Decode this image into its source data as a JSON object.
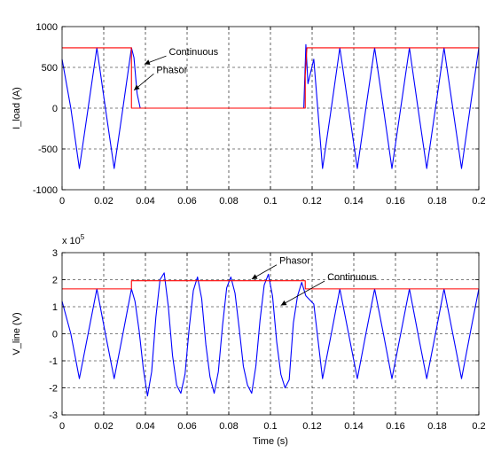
{
  "chart_data": [
    {
      "type": "line",
      "title": "",
      "xlabel": "",
      "ylabel": "I_load (A)",
      "xlim": [
        0,
        0.2
      ],
      "ylim": [
        -1000,
        1000
      ],
      "x_ticks": [
        0,
        0.02,
        0.04,
        0.06,
        0.08,
        0.1,
        0.12,
        0.14,
        0.16,
        0.18,
        0.2
      ],
      "x_tick_labels": [
        "0",
        "0.02",
        "0.04",
        "0.06",
        "0.08",
        "0.1",
        "0.12",
        "0.14",
        "0.16",
        "0.18",
        "0.2"
      ],
      "y_ticks": [
        -1000,
        -500,
        0,
        500,
        1000
      ],
      "y_tick_labels": [
        "-1000",
        "-500",
        "0",
        "500",
        "1000"
      ],
      "grid": true,
      "series": [
        {
          "name": "Continuous",
          "color": "#0000ff",
          "x": [
            0,
            0.0042,
            0.0083,
            0.0125,
            0.0167,
            0.0208,
            0.025,
            0.0292,
            0.0333,
            0.0345,
            0.036,
            0.0375,
            0.116,
            0.117,
            0.118,
            0.1208,
            0.125,
            0.1292,
            0.1333,
            0.1375,
            0.1417,
            0.1458,
            0.15,
            0.1542,
            0.1583,
            0.1625,
            0.1667,
            0.1708,
            0.175,
            0.1792,
            0.1833,
            0.1875,
            0.1917,
            0.1958,
            0.2
          ],
          "y": [
            600,
            0,
            -740,
            0,
            740,
            0,
            -740,
            0,
            740,
            620,
            180,
            0,
            0,
            780,
            300,
            600,
            -740,
            0,
            740,
            0,
            -740,
            0,
            740,
            0,
            -740,
            0,
            740,
            0,
            -740,
            0,
            740,
            0,
            -740,
            0,
            740
          ]
        },
        {
          "name": "Phasor",
          "color": "#ff0000",
          "x": [
            0,
            0.0333,
            0.0333,
            0.1167,
            0.1167,
            0.1175,
            0.2
          ],
          "y": [
            740,
            740,
            0,
            0,
            400,
            740,
            740
          ]
        }
      ],
      "annotations": [
        {
          "text": "Continuous",
          "at": [
            0.0395,
            540
          ],
          "anchor": [
            0.05,
            640
          ]
        },
        {
          "text": "Phasor",
          "at": [
            0.0345,
            220
          ],
          "anchor": [
            0.044,
            420
          ]
        }
      ]
    },
    {
      "type": "line",
      "title": "",
      "xlabel": "Time (s)",
      "ylabel": "V_line (V)",
      "y_multiplier": "x 10^5",
      "xlim": [
        0,
        0.2
      ],
      "ylim": [
        -3,
        3
      ],
      "x_ticks": [
        0,
        0.02,
        0.04,
        0.06,
        0.08,
        0.1,
        0.12,
        0.14,
        0.16,
        0.18,
        0.2
      ],
      "x_tick_labels": [
        "0",
        "0.02",
        "0.04",
        "0.06",
        "0.08",
        "0.1",
        "0.12",
        "0.14",
        "0.16",
        "0.18",
        "0.2"
      ],
      "y_ticks": [
        -3,
        -2,
        -1,
        0,
        1,
        2,
        3
      ],
      "y_tick_labels": [
        "-3",
        "-2",
        "-1",
        "0",
        "1",
        "2",
        "3"
      ],
      "grid": true,
      "series": [
        {
          "name": "Continuous",
          "color": "#0000ff",
          "x": [
            0,
            0.0042,
            0.0083,
            0.0125,
            0.0167,
            0.0208,
            0.025,
            0.0292,
            0.0333,
            0.035,
            0.037,
            0.039,
            0.041,
            0.043,
            0.045,
            0.047,
            0.049,
            0.051,
            0.053,
            0.055,
            0.057,
            0.059,
            0.061,
            0.063,
            0.065,
            0.067,
            0.069,
            0.071,
            0.073,
            0.075,
            0.077,
            0.079,
            0.081,
            0.083,
            0.085,
            0.087,
            0.089,
            0.091,
            0.093,
            0.095,
            0.097,
            0.099,
            0.101,
            0.103,
            0.105,
            0.107,
            0.109,
            0.111,
            0.113,
            0.115,
            0.117,
            0.1208,
            0.125,
            0.1292,
            0.1333,
            0.1375,
            0.1417,
            0.1458,
            0.15,
            0.1542,
            0.1583,
            0.1625,
            0.1667,
            0.1708,
            0.175,
            0.1792,
            0.1833,
            0.1875,
            0.1917,
            0.1958,
            0.2
          ],
          "y": [
            1.2,
            0,
            -1.66,
            0,
            1.66,
            0,
            -1.66,
            0,
            1.66,
            1.2,
            0.1,
            -1.3,
            -2.3,
            -1.4,
            0.6,
            2.0,
            2.25,
            1.0,
            -0.8,
            -1.9,
            -2.2,
            -1.5,
            0.2,
            1.6,
            2.1,
            1.3,
            -0.4,
            -1.6,
            -2.2,
            -1.4,
            0.3,
            1.7,
            2.1,
            1.5,
            0.2,
            -1.2,
            -1.9,
            -2.2,
            -1.2,
            0.5,
            1.8,
            2.2,
            1.4,
            -0.3,
            -1.5,
            -2.0,
            -1.7,
            0.4,
            1.4,
            1.9,
            1.4,
            1.1,
            -1.66,
            0,
            1.66,
            0,
            -1.66,
            0,
            1.66,
            0,
            -1.66,
            0,
            1.66,
            0,
            -1.66,
            0,
            1.66,
            0,
            -1.66,
            0,
            1.66
          ]
        },
        {
          "name": "Phasor",
          "color": "#ff0000",
          "x": [
            0,
            0.0333,
            0.0333,
            0.1167,
            0.1167,
            0.2
          ],
          "y": [
            1.66,
            1.66,
            1.96,
            1.96,
            1.66,
            1.66
          ]
        }
      ],
      "annotations": [
        {
          "text": "Phasor",
          "at": [
            0.091,
            2.02
          ],
          "anchor": [
            0.103,
            2.55
          ]
        },
        {
          "text": "Continuous",
          "at": [
            0.105,
            1.05
          ],
          "anchor": [
            0.126,
            1.95
          ]
        }
      ]
    }
  ]
}
